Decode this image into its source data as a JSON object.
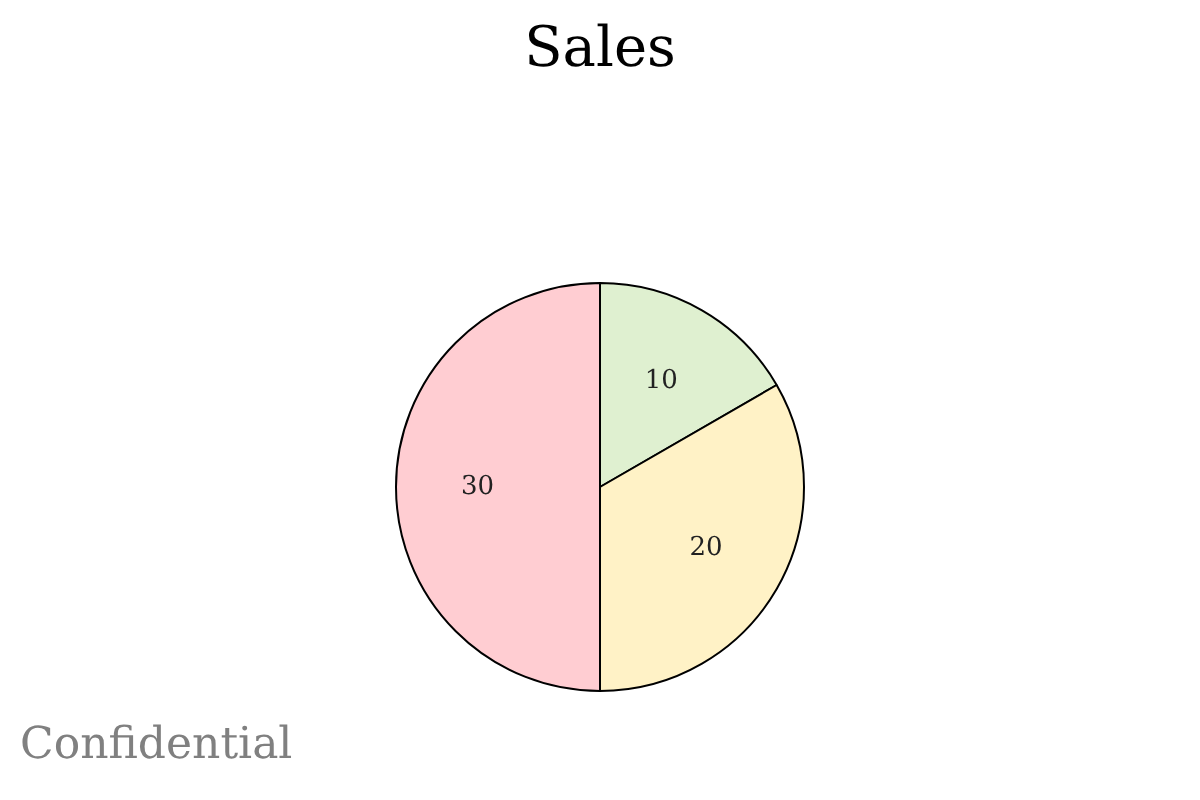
{
  "chart_data": {
    "type": "pie",
    "title": "Sales",
    "categories": [
      null,
      null,
      null
    ],
    "values": [
      10,
      20,
      30
    ],
    "colors": [
      "#dff0d0",
      "#fff2c6",
      "#ffcdd2"
    ],
    "data_labels": true,
    "annotations": [
      "Confidential"
    ]
  }
}
